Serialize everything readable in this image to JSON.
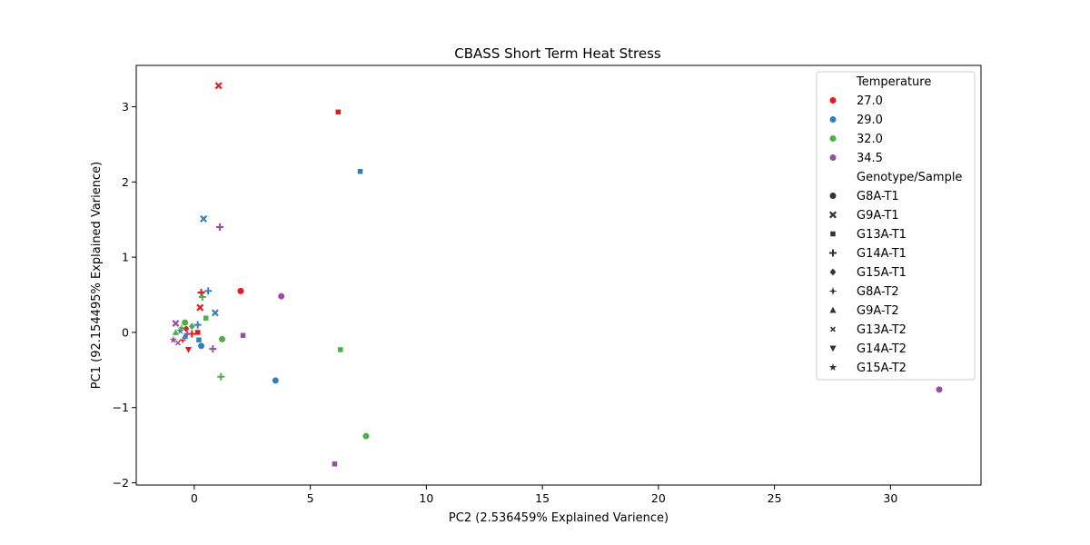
{
  "chart_data": {
    "type": "scatter",
    "title": "CBASS Short Term Heat Stress",
    "xlabel": "PC2 (2.536459% Explained Varience)",
    "ylabel": "PC1 (92.154495% Explained Varience)",
    "xlim": [
      -2.5,
      33.9
    ],
    "ylim": [
      -2.03,
      3.55
    ],
    "x_ticks": [
      0,
      5,
      10,
      15,
      20,
      25,
      30
    ],
    "x_tick_labels": [
      "0",
      "5",
      "10",
      "15",
      "20",
      "25",
      "30"
    ],
    "y_ticks": [
      -2,
      -1,
      0,
      1,
      2,
      3
    ],
    "y_tick_labels": [
      "−2",
      "−1",
      "0",
      "1",
      "2",
      "3"
    ],
    "grid": false,
    "legend": {
      "placement": "top-right",
      "hue_title": "Temperature",
      "style_title": "Genotype/Sample",
      "hue_entries": [
        {
          "label": "27.0",
          "color": "#e41a1c"
        },
        {
          "label": "29.0",
          "color": "#377eb8"
        },
        {
          "label": "32.0",
          "color": "#4daf4a"
        },
        {
          "label": "34.5",
          "color": "#984ea3"
        }
      ],
      "style_entries": [
        {
          "label": "G8A-T1",
          "marker": "circle"
        },
        {
          "label": "G9A-T1",
          "marker": "x"
        },
        {
          "label": "G13A-T1",
          "marker": "square"
        },
        {
          "label": "G14A-T1",
          "marker": "plus"
        },
        {
          "label": "G15A-T1",
          "marker": "diamond"
        },
        {
          "label": "G8A-T2",
          "marker": "star4"
        },
        {
          "label": "G9A-T2",
          "marker": "triangle"
        },
        {
          "label": "G13A-T2",
          "marker": "xsmall"
        },
        {
          "label": "G14A-T2",
          "marker": "triangle-down"
        },
        {
          "label": "G15A-T2",
          "marker": "star"
        }
      ]
    },
    "points": [
      {
        "x": 1.05,
        "y": 3.28,
        "temp": "27.0",
        "sample": "G9A-T1"
      },
      {
        "x": 6.2,
        "y": 2.93,
        "temp": "27.0",
        "sample": "G13A-T1"
      },
      {
        "x": 2.0,
        "y": 0.55,
        "temp": "27.0",
        "sample": "G8A-T1"
      },
      {
        "x": 0.3,
        "y": 0.53,
        "temp": "27.0",
        "sample": "G14A-T1"
      },
      {
        "x": 0.25,
        "y": 0.33,
        "temp": "27.0",
        "sample": "G9A-T1"
      },
      {
        "x": 0.15,
        "y": 0.0,
        "temp": "27.0",
        "sample": "G13A-T1"
      },
      {
        "x": -0.35,
        "y": 0.05,
        "temp": "27.0",
        "sample": "G15A-T1"
      },
      {
        "x": -0.25,
        "y": -0.23,
        "temp": "27.0",
        "sample": "G14A-T2"
      },
      {
        "x": -0.5,
        "y": -0.1,
        "temp": "27.0",
        "sample": "G8A-T2"
      },
      {
        "x": -0.1,
        "y": -0.02,
        "temp": "27.0",
        "sample": "G14A-T1"
      },
      {
        "x": 7.15,
        "y": 2.14,
        "temp": "29.0",
        "sample": "G13A-T1"
      },
      {
        "x": 0.4,
        "y": 1.51,
        "temp": "29.0",
        "sample": "G9A-T1"
      },
      {
        "x": 0.6,
        "y": 0.55,
        "temp": "29.0",
        "sample": "G14A-T1"
      },
      {
        "x": 0.9,
        "y": 0.26,
        "temp": "29.0",
        "sample": "G9A-T1"
      },
      {
        "x": 0.15,
        "y": 0.1,
        "temp": "29.0",
        "sample": "G14A-T1"
      },
      {
        "x": 0.2,
        "y": -0.1,
        "temp": "29.0",
        "sample": "G13A-T1"
      },
      {
        "x": 0.3,
        "y": -0.18,
        "temp": "29.0",
        "sample": "G8A-T1"
      },
      {
        "x": 3.5,
        "y": -0.64,
        "temp": "29.0",
        "sample": "G8A-T1"
      },
      {
        "x": -0.4,
        "y": -0.05,
        "temp": "29.0",
        "sample": "G9A-T2"
      },
      {
        "x": -0.6,
        "y": 0.02,
        "temp": "29.0",
        "sample": "G15A-T2"
      },
      {
        "x": 0.35,
        "y": 0.47,
        "temp": "32.0",
        "sample": "G14A-T1"
      },
      {
        "x": 0.5,
        "y": 0.19,
        "temp": "32.0",
        "sample": "G13A-T1"
      },
      {
        "x": -0.4,
        "y": 0.13,
        "temp": "32.0",
        "sample": "G8A-T1"
      },
      {
        "x": -0.1,
        "y": 0.08,
        "temp": "32.0",
        "sample": "G15A-T1"
      },
      {
        "x": 1.2,
        "y": -0.09,
        "temp": "32.0",
        "sample": "G8A-T1"
      },
      {
        "x": 6.3,
        "y": -0.23,
        "temp": "32.0",
        "sample": "G13A-T1"
      },
      {
        "x": 1.15,
        "y": -0.59,
        "temp": "32.0",
        "sample": "G14A-T1"
      },
      {
        "x": 7.4,
        "y": -1.38,
        "temp": "32.0",
        "sample": "G8A-T1"
      },
      {
        "x": -0.8,
        "y": 0.0,
        "temp": "32.0",
        "sample": "G9A-T2"
      },
      {
        "x": -0.55,
        "y": 0.06,
        "temp": "32.0",
        "sample": "G8A-T2"
      },
      {
        "x": 1.1,
        "y": 1.4,
        "temp": "34.5",
        "sample": "G14A-T1"
      },
      {
        "x": 3.75,
        "y": 0.48,
        "temp": "34.5",
        "sample": "G8A-T1"
      },
      {
        "x": 2.1,
        "y": -0.04,
        "temp": "34.5",
        "sample": "G13A-T1"
      },
      {
        "x": 0.8,
        "y": -0.22,
        "temp": "34.5",
        "sample": "G14A-T1"
      },
      {
        "x": -0.8,
        "y": 0.12,
        "temp": "34.5",
        "sample": "G9A-T1"
      },
      {
        "x": -0.9,
        "y": -0.1,
        "temp": "34.5",
        "sample": "G15A-T2"
      },
      {
        "x": -0.7,
        "y": -0.14,
        "temp": "34.5",
        "sample": "G13A-T2"
      },
      {
        "x": 6.05,
        "y": -1.75,
        "temp": "34.5",
        "sample": "G13A-T1"
      },
      {
        "x": 32.1,
        "y": -0.76,
        "temp": "34.5",
        "sample": "G8A-T1"
      },
      {
        "x": -0.3,
        "y": -0.02,
        "temp": "34.5",
        "sample": "G8A-T2"
      }
    ]
  }
}
